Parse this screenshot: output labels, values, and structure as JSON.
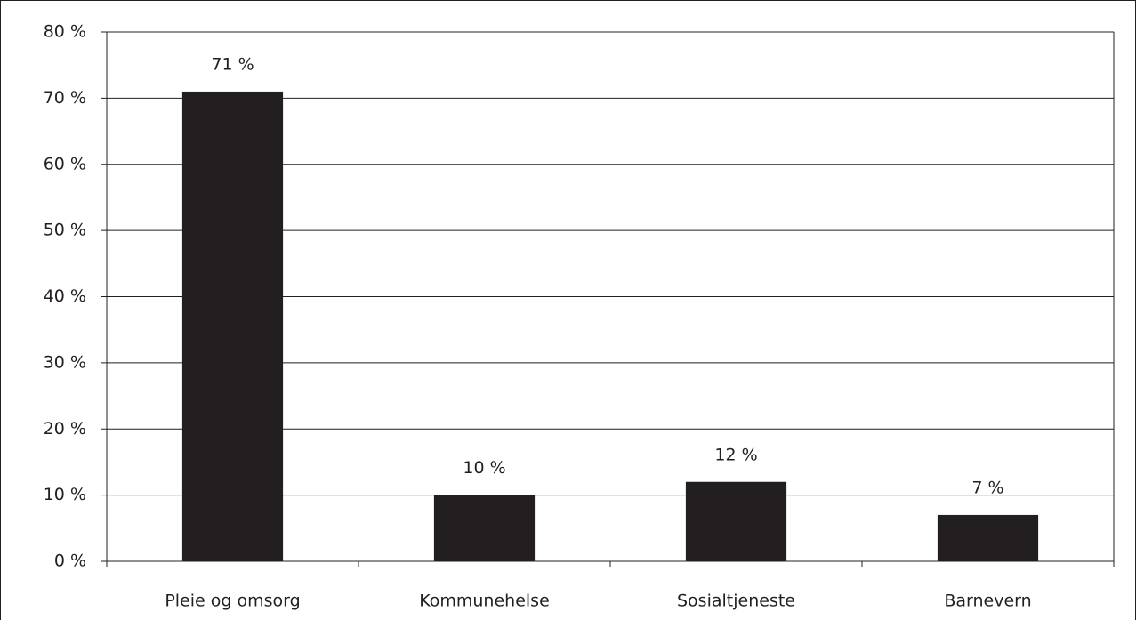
{
  "chart_data": {
    "type": "bar",
    "categories": [
      "Pleie og omsorg",
      "Kommunehelse",
      "Sosialtjeneste",
      "Barnevern"
    ],
    "values": [
      71,
      10,
      12,
      7
    ],
    "value_labels": [
      "71 %",
      "10 %",
      "12 %",
      "7 %"
    ],
    "color": "#231f20",
    "ylim": [
      0,
      80
    ],
    "yticks": [
      {
        "value": 0,
        "label": "0 %"
      },
      {
        "value": 10,
        "label": "10 %"
      },
      {
        "value": 20,
        "label": "20 %"
      },
      {
        "value": 30,
        "label": "30 %"
      },
      {
        "value": 40,
        "label": "40 %"
      },
      {
        "value": 50,
        "label": "50 %"
      },
      {
        "value": 60,
        "label": "60 %"
      },
      {
        "value": 70,
        "label": "70 %"
      },
      {
        "value": 80,
        "label": "80 %"
      }
    ],
    "grid": true
  }
}
